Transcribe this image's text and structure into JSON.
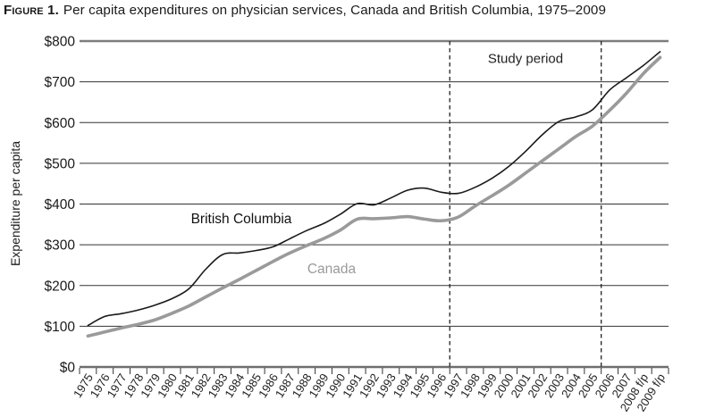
{
  "title": {
    "figure_label": "Figure 1.",
    "caption": "Per capita expenditures on physician services, Canada and British Columbia, 1975–2009"
  },
  "chart_data": {
    "type": "line",
    "title": "Per capita expenditures on physician services, Canada and British Columbia, 1975–2009",
    "ylabel": "Expenditure per capita",
    "xlabel": "",
    "ylim": [
      0,
      800
    ],
    "y_tick_step": 100,
    "y_tick_labels": [
      "$0",
      "$100",
      "$200",
      "$300",
      "$400",
      "$500",
      "$600",
      "$700",
      "$800"
    ],
    "grid": "horizontal",
    "legend": "inline-labels",
    "categories": [
      "1975",
      "1976",
      "1977",
      "1978",
      "1979",
      "1980",
      "1981",
      "1982",
      "1983",
      "1984",
      "1985",
      "1986",
      "1987",
      "1988",
      "1989",
      "1990",
      "1991",
      "1992",
      "1993",
      "1994",
      "1995",
      "1996",
      "1997",
      "1998",
      "1999",
      "2000",
      "2001",
      "2002",
      "2003",
      "2004",
      "2005",
      "2006",
      "2007",
      "2008 f/p",
      "2009 f/p"
    ],
    "series": [
      {
        "name": "British Columbia",
        "color": "#1a1a1a",
        "stroke_width": 1.6,
        "values": [
          102,
          124,
          131,
          140,
          152,
          168,
          192,
          240,
          276,
          280,
          286,
          295,
          315,
          335,
          352,
          375,
          401,
          398,
          415,
          434,
          439,
          429,
          426,
          441,
          463,
          492,
          529,
          570,
          603,
          614,
          632,
          680,
          710,
          740,
          774
        ]
      },
      {
        "name": "Canada",
        "color": "#9a9a9a",
        "stroke_width": 3.6,
        "values": [
          76,
          86,
          96,
          105,
          116,
          132,
          150,
          172,
          194,
          215,
          237,
          259,
          280,
          298,
          315,
          336,
          363,
          364,
          366,
          369,
          363,
          359,
          368,
          395,
          420,
          446,
          476,
          506,
          536,
          566,
          592,
          630,
          672,
          720,
          760
        ]
      }
    ],
    "annotations": {
      "study_period": {
        "label": "Study period",
        "start_boundary": "1996/1997",
        "end_boundary": "2005/2006",
        "start_boundary_index": 22,
        "end_boundary_index": 31,
        "line_style": "dashed",
        "line_color": "#222222"
      }
    }
  }
}
